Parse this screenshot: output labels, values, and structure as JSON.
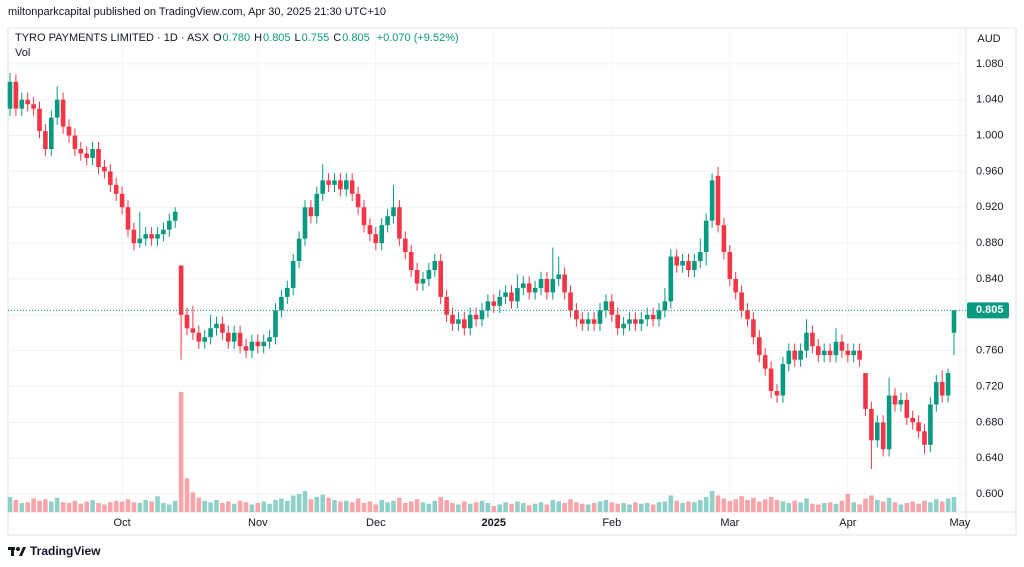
{
  "header": "miltonparkcapital published on TradingView.com, Apr 30, 2025 21:30 UTC+10",
  "footer": "TradingView",
  "chart_data": {
    "type": "candlestick",
    "title": "TYRO PAYMENTS LIMITED · 1D · ASX",
    "ohlc_legend": [
      {
        "key": "O",
        "value": "0.780"
      },
      {
        "key": "H",
        "value": "0.805"
      },
      {
        "key": "L",
        "value": "0.755"
      },
      {
        "key": "C",
        "value": "0.805"
      }
    ],
    "change_label": "+0.070 (+9.52%)",
    "volume_label": "Vol",
    "currency": "AUD",
    "last_price_label": "0.805",
    "up_color": "#089981",
    "down_color": "#f23645",
    "volume_up_color": "#8fd1c8",
    "volume_down_color": "#f7a5a8",
    "grid": true,
    "ylim": [
      0.58,
      1.12
    ],
    "yticks": [
      {
        "value": 1.08,
        "label": "1.080"
      },
      {
        "value": 1.04,
        "label": "1.040"
      },
      {
        "value": 1.0,
        "label": "1.000"
      },
      {
        "value": 0.96,
        "label": "0.960"
      },
      {
        "value": 0.92,
        "label": "0.920"
      },
      {
        "value": 0.88,
        "label": "0.880"
      },
      {
        "value": 0.84,
        "label": "0.840"
      },
      {
        "value": 0.8,
        "label": "0.800"
      },
      {
        "value": 0.76,
        "label": "0.760"
      },
      {
        "value": 0.72,
        "label": "0.720"
      },
      {
        "value": 0.68,
        "label": "0.680"
      },
      {
        "value": 0.64,
        "label": "0.640"
      },
      {
        "value": 0.6,
        "label": "0.600"
      }
    ],
    "xticks": [
      {
        "value": 19,
        "label": "Oct"
      },
      {
        "value": 42,
        "label": "Nov"
      },
      {
        "value": 62,
        "label": "Dec"
      },
      {
        "value": 82,
        "label": "2025"
      },
      {
        "value": 102,
        "label": "Feb"
      },
      {
        "value": 122,
        "label": "Mar"
      },
      {
        "value": 142,
        "label": "Apr"
      },
      {
        "value": 161,
        "label": "May"
      }
    ],
    "open": [
      1.03,
      1.06,
      1.03,
      1.04,
      1.035,
      1.03,
      1.005,
      0.985,
      1.02,
      1.04,
      1.01,
      1.0,
      0.985,
      0.98,
      0.975,
      0.985,
      0.965,
      0.96,
      0.945,
      0.935,
      0.92,
      0.895,
      0.88,
      0.885,
      0.89,
      0.885,
      0.89,
      0.895,
      0.905,
      0.855,
      0.8,
      0.785,
      0.78,
      0.77,
      0.775,
      0.785,
      0.79,
      0.78,
      0.77,
      0.78,
      0.765,
      0.76,
      0.77,
      0.765,
      0.77,
      0.775,
      0.805,
      0.82,
      0.83,
      0.86,
      0.885,
      0.92,
      0.91,
      0.935,
      0.95,
      0.945,
      0.95,
      0.94,
      0.95,
      0.935,
      0.92,
      0.9,
      0.89,
      0.88,
      0.9,
      0.91,
      0.92,
      0.885,
      0.87,
      0.85,
      0.835,
      0.84,
      0.85,
      0.86,
      0.82,
      0.8,
      0.79,
      0.795,
      0.785,
      0.8,
      0.795,
      0.805,
      0.815,
      0.81,
      0.82,
      0.825,
      0.815,
      0.83,
      0.835,
      0.825,
      0.83,
      0.84,
      0.825,
      0.84,
      0.845,
      0.825,
      0.805,
      0.795,
      0.79,
      0.795,
      0.79,
      0.805,
      0.815,
      0.8,
      0.785,
      0.79,
      0.795,
      0.79,
      0.795,
      0.8,
      0.795,
      0.805,
      0.815,
      0.865,
      0.855,
      0.86,
      0.85,
      0.86,
      0.87,
      0.905,
      0.955,
      0.9,
      0.87,
      0.84,
      0.825,
      0.805,
      0.795,
      0.775,
      0.755,
      0.74,
      0.715,
      0.71,
      0.745,
      0.76,
      0.75,
      0.76,
      0.78,
      0.765,
      0.755,
      0.76,
      0.755,
      0.77,
      0.76,
      0.755,
      0.76,
      0.735,
      0.695,
      0.66,
      0.68,
      0.65,
      0.71,
      0.7,
      0.705,
      0.685,
      0.68,
      0.67,
      0.655,
      0.7,
      0.725,
      0.71,
      0.78
    ],
    "high": [
      1.07,
      1.068,
      1.048,
      1.048,
      1.043,
      1.038,
      1.013,
      1.028,
      1.055,
      1.048,
      1.018,
      1.008,
      0.993,
      0.988,
      0.993,
      0.993,
      0.973,
      0.968,
      0.953,
      0.943,
      0.928,
      0.903,
      0.915,
      0.898,
      0.898,
      0.898,
      0.903,
      0.913,
      0.92,
      0.855,
      0.808,
      0.81,
      0.788,
      0.783,
      0.8,
      0.798,
      0.798,
      0.788,
      0.788,
      0.788,
      0.773,
      0.778,
      0.778,
      0.778,
      0.783,
      0.813,
      0.828,
      0.838,
      0.868,
      0.893,
      0.928,
      0.928,
      0.943,
      0.968,
      0.958,
      0.958,
      0.958,
      0.958,
      0.958,
      0.943,
      0.928,
      0.908,
      0.898,
      0.908,
      0.918,
      0.945,
      0.928,
      0.893,
      0.878,
      0.858,
      0.848,
      0.858,
      0.868,
      0.868,
      0.828,
      0.808,
      0.803,
      0.803,
      0.808,
      0.808,
      0.813,
      0.823,
      0.823,
      0.828,
      0.833,
      0.833,
      0.845,
      0.843,
      0.843,
      0.838,
      0.848,
      0.848,
      0.875,
      0.865,
      0.853,
      0.833,
      0.813,
      0.803,
      0.803,
      0.803,
      0.813,
      0.823,
      0.823,
      0.808,
      0.798,
      0.803,
      0.803,
      0.803,
      0.808,
      0.808,
      0.813,
      0.83,
      0.873,
      0.873,
      0.868,
      0.868,
      0.868,
      0.885,
      0.913,
      0.958,
      0.965,
      0.908,
      0.878,
      0.848,
      0.833,
      0.813,
      0.803,
      0.783,
      0.763,
      0.748,
      0.723,
      0.753,
      0.768,
      0.768,
      0.768,
      0.795,
      0.788,
      0.773,
      0.768,
      0.768,
      0.785,
      0.778,
      0.768,
      0.768,
      0.768,
      0.735,
      0.703,
      0.688,
      0.688,
      0.73,
      0.718,
      0.713,
      0.713,
      0.693,
      0.688,
      0.678,
      0.708,
      0.733,
      0.738,
      0.74,
      0.805
    ],
    "low": [
      1.022,
      1.022,
      1.022,
      1.027,
      1.022,
      0.997,
      0.977,
      0.977,
      1.012,
      1.002,
      0.992,
      0.977,
      0.972,
      0.967,
      0.967,
      0.957,
      0.952,
      0.937,
      0.927,
      0.912,
      0.887,
      0.872,
      0.875,
      0.877,
      0.877,
      0.877,
      0.882,
      0.887,
      0.897,
      0.75,
      0.777,
      0.772,
      0.762,
      0.762,
      0.767,
      0.777,
      0.772,
      0.762,
      0.762,
      0.757,
      0.752,
      0.752,
      0.757,
      0.757,
      0.762,
      0.767,
      0.797,
      0.812,
      0.822,
      0.852,
      0.877,
      0.902,
      0.902,
      0.927,
      0.937,
      0.937,
      0.932,
      0.932,
      0.927,
      0.912,
      0.892,
      0.882,
      0.872,
      0.872,
      0.892,
      0.902,
      0.877,
      0.862,
      0.842,
      0.827,
      0.827,
      0.832,
      0.842,
      0.812,
      0.792,
      0.782,
      0.782,
      0.777,
      0.777,
      0.787,
      0.787,
      0.797,
      0.802,
      0.802,
      0.812,
      0.807,
      0.807,
      0.822,
      0.817,
      0.817,
      0.822,
      0.817,
      0.817,
      0.832,
      0.817,
      0.797,
      0.787,
      0.782,
      0.782,
      0.782,
      0.782,
      0.797,
      0.792,
      0.777,
      0.777,
      0.782,
      0.782,
      0.782,
      0.787,
      0.787,
      0.787,
      0.797,
      0.807,
      0.847,
      0.847,
      0.842,
      0.842,
      0.852,
      0.855,
      0.897,
      0.892,
      0.862,
      0.832,
      0.817,
      0.797,
      0.787,
      0.767,
      0.747,
      0.732,
      0.707,
      0.702,
      0.702,
      0.737,
      0.742,
      0.742,
      0.752,
      0.757,
      0.747,
      0.747,
      0.747,
      0.747,
      0.752,
      0.747,
      0.747,
      0.742,
      0.687,
      0.628,
      0.652,
      0.642,
      0.642,
      0.692,
      0.692,
      0.677,
      0.672,
      0.662,
      0.645,
      0.647,
      0.692,
      0.702,
      0.702,
      0.755
    ],
    "close": [
      1.06,
      1.03,
      1.04,
      1.035,
      1.03,
      1.005,
      0.985,
      1.02,
      1.04,
      1.01,
      1.0,
      0.985,
      0.98,
      0.975,
      0.985,
      0.965,
      0.96,
      0.945,
      0.935,
      0.92,
      0.895,
      0.88,
      0.885,
      0.89,
      0.885,
      0.89,
      0.895,
      0.905,
      0.915,
      0.8,
      0.785,
      0.78,
      0.77,
      0.775,
      0.785,
      0.79,
      0.78,
      0.77,
      0.78,
      0.765,
      0.76,
      0.77,
      0.765,
      0.77,
      0.775,
      0.805,
      0.82,
      0.83,
      0.86,
      0.885,
      0.92,
      0.91,
      0.935,
      0.95,
      0.945,
      0.95,
      0.94,
      0.95,
      0.935,
      0.92,
      0.9,
      0.89,
      0.88,
      0.9,
      0.91,
      0.92,
      0.885,
      0.87,
      0.85,
      0.835,
      0.84,
      0.85,
      0.86,
      0.82,
      0.8,
      0.79,
      0.795,
      0.785,
      0.8,
      0.795,
      0.805,
      0.815,
      0.81,
      0.82,
      0.825,
      0.815,
      0.83,
      0.835,
      0.825,
      0.83,
      0.84,
      0.825,
      0.84,
      0.845,
      0.825,
      0.805,
      0.795,
      0.79,
      0.795,
      0.79,
      0.805,
      0.815,
      0.8,
      0.785,
      0.79,
      0.795,
      0.79,
      0.795,
      0.8,
      0.795,
      0.805,
      0.815,
      0.865,
      0.855,
      0.86,
      0.85,
      0.86,
      0.87,
      0.905,
      0.95,
      0.9,
      0.87,
      0.84,
      0.825,
      0.805,
      0.795,
      0.775,
      0.755,
      0.74,
      0.715,
      0.71,
      0.745,
      0.76,
      0.75,
      0.76,
      0.78,
      0.765,
      0.755,
      0.76,
      0.755,
      0.77,
      0.76,
      0.755,
      0.76,
      0.75,
      0.695,
      0.66,
      0.68,
      0.65,
      0.71,
      0.7,
      0.705,
      0.685,
      0.68,
      0.67,
      0.655,
      0.7,
      0.725,
      0.71,
      0.735,
      0.805
    ],
    "volume": [
      2.0,
      1.6,
      1.2,
      1.3,
      1.8,
      1.5,
      1.7,
      1.4,
      1.9,
      1.3,
      1.2,
      1.5,
      1.1,
      1.4,
      1.6,
      1.2,
      1.0,
      1.3,
      1.5,
      1.4,
      1.7,
      1.3,
      1.2,
      1.6,
      1.4,
      2.1,
      1.2,
      1.0,
      1.5,
      16.0,
      4.5,
      2.6,
      1.9,
      1.5,
      1.3,
      1.6,
      1.2,
      1.4,
      1.1,
      1.5,
      1.3,
      1.0,
      1.2,
      1.4,
      1.1,
      1.6,
      1.8,
      1.5,
      2.2,
      2.4,
      2.8,
      1.7,
      2.0,
      2.3,
      1.9,
      1.6,
      1.4,
      1.5,
      1.3,
      1.8,
      1.2,
      1.4,
      1.0,
      1.6,
      1.3,
      1.5,
      1.9,
      1.2,
      1.4,
      1.7,
      1.3,
      1.1,
      1.5,
      2.0,
      1.6,
      1.2,
      1.0,
      1.4,
      1.1,
      1.3,
      1.5,
      1.2,
      0.8,
      1.0,
      1.3,
      1.1,
      1.4,
      1.2,
      0.9,
      1.1,
      1.3,
      1.0,
      1.6,
      1.4,
      1.2,
      1.7,
      1.3,
      1.1,
      1.0,
      1.2,
      1.4,
      1.6,
      1.3,
      1.1,
      1.2,
      1.0,
      1.3,
      1.1,
      1.2,
      1.0,
      1.3,
      1.4,
      2.2,
      1.5,
      1.2,
      1.4,
      1.3,
      1.6,
      2.0,
      2.8,
      2.2,
      1.8,
      1.5,
      1.7,
      2.1,
      1.6,
      1.9,
      1.4,
      1.7,
      2.0,
      1.6,
      1.4,
      1.2,
      1.5,
      1.3,
      1.8,
      1.1,
      1.0,
      1.2,
      1.3,
      1.1,
      1.5,
      2.4,
      1.3,
      1.0,
      1.8,
      2.2,
      1.6,
      1.4,
      1.9,
      1.3,
      1.0,
      1.2,
      1.4,
      1.1,
      1.5,
      1.3,
      1.7,
      1.4,
      1.8,
      2.0
    ]
  }
}
